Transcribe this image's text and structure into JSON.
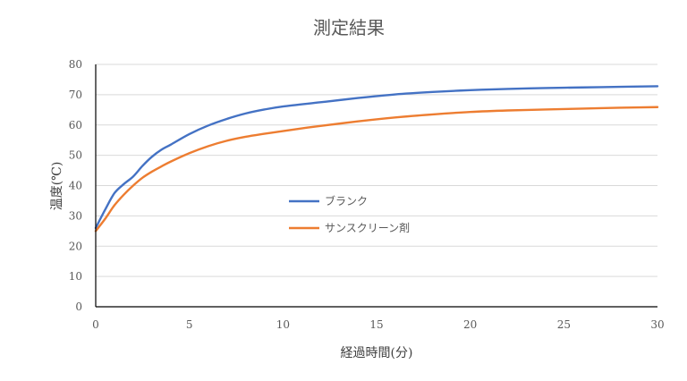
{
  "chart_data": {
    "type": "line",
    "title": "測定結果",
    "xlabel": "経過時間(分)",
    "ylabel": "温度(℃)",
    "xlim": [
      0,
      30
    ],
    "ylim": [
      0,
      80
    ],
    "x_ticks": [
      0,
      5,
      10,
      15,
      20,
      25,
      30
    ],
    "y_ticks": [
      0,
      10,
      20,
      30,
      40,
      50,
      60,
      70,
      80
    ],
    "grid": true,
    "legend_position": "center-inside",
    "series": [
      {
        "name": "ブランク",
        "color": "#4472c4",
        "x": [
          0,
          0.5,
          1,
          1.5,
          2,
          2.5,
          3,
          3.5,
          4,
          5,
          6,
          7,
          8,
          9,
          10,
          12,
          14,
          16,
          18,
          20,
          22,
          24,
          26,
          28,
          30
        ],
        "y": [
          26,
          32,
          37.5,
          40.5,
          43,
          46.5,
          49.5,
          51.8,
          53.5,
          57,
          59.8,
          62,
          63.8,
          65.1,
          66.1,
          67.5,
          68.9,
          70.1,
          70.9,
          71.5,
          71.9,
          72.2,
          72.4,
          72.6,
          72.8
        ]
      },
      {
        "name": "サンスクリーン剤",
        "color": "#ed7d31",
        "x": [
          0,
          0.5,
          1,
          1.5,
          2,
          2.5,
          3,
          3.5,
          4,
          5,
          6,
          7,
          8,
          9,
          10,
          12,
          14,
          16,
          18,
          20,
          22,
          24,
          26,
          28,
          30
        ],
        "y": [
          25,
          29,
          33.5,
          37,
          40,
          42.6,
          44.6,
          46.3,
          47.9,
          50.7,
          53,
          54.8,
          56.1,
          57.1,
          58,
          59.7,
          61.2,
          62.5,
          63.5,
          64.3,
          64.8,
          65.1,
          65.4,
          65.7,
          65.9
        ]
      }
    ]
  }
}
